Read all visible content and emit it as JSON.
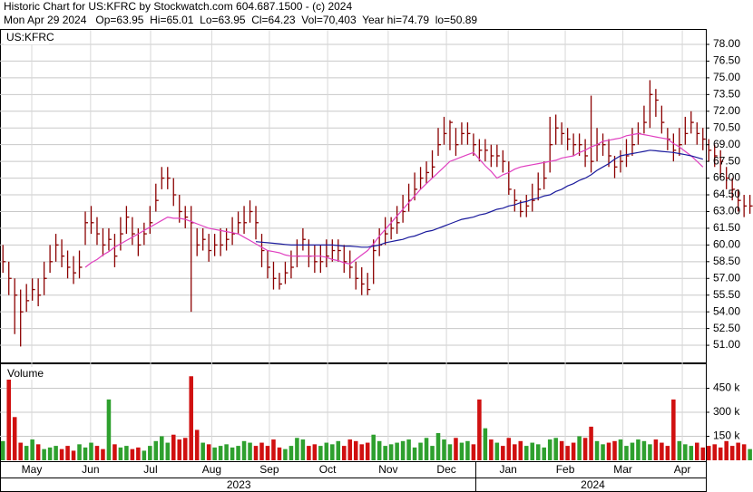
{
  "header": {
    "line1": "Historic Chart for US:KFRC by Stockwatch.com 604.687.1500 - (c) 2024",
    "line2": "Mon Apr 29 2024   Op=63.95  Hi=65.01  Lo=63.95  Cl=64.23  Vol=70,403  Year hi=74.79  lo=50.89"
  },
  "chart_data": [
    {
      "type": "ohlc",
      "title": "US:KFRC",
      "color": "#8b0000",
      "xlim": [
        0,
        120
      ],
      "ylim": [
        49.46,
        79.3
      ],
      "grid": true,
      "yticks": [
        {
          "value": 51,
          "label": "51.00"
        },
        {
          "value": 52.5,
          "label": "52.50"
        },
        {
          "value": 54,
          "label": "54.00"
        },
        {
          "value": 55.5,
          "label": "55.50"
        },
        {
          "value": 57,
          "label": "57.00"
        },
        {
          "value": 58.5,
          "label": "58.50"
        },
        {
          "value": 60,
          "label": "60.00"
        },
        {
          "value": 61.5,
          "label": "61.50"
        },
        {
          "value": 63,
          "label": "63.00"
        },
        {
          "value": 64.5,
          "label": "64.50"
        },
        {
          "value": 66,
          "label": "66.00"
        },
        {
          "value": 67.5,
          "label": "67.50"
        },
        {
          "value": 69,
          "label": "69.00"
        },
        {
          "value": 70.5,
          "label": "70.50"
        },
        {
          "value": 72,
          "label": "72.00"
        },
        {
          "value": 73.5,
          "label": "73.50"
        },
        {
          "value": 75,
          "label": "75.00"
        },
        {
          "value": 76.5,
          "label": "76.50"
        },
        {
          "value": 78,
          "label": "78.00"
        }
      ],
      "close": [
        58.5,
        57,
        55.5,
        54,
        55,
        56,
        55.5,
        57,
        58.5,
        60,
        59,
        58,
        57.5,
        58,
        62,
        62,
        61,
        60,
        60.5,
        59,
        61,
        62.5,
        61,
        60,
        61,
        62,
        64,
        66,
        66,
        64.5,
        63,
        62.5,
        62,
        60,
        60.5,
        59.5,
        60,
        60,
        60.5,
        61,
        62,
        62,
        63,
        62,
        59.5,
        58,
        57,
        56.5,
        57.5,
        58,
        59,
        60.5,
        59,
        58.5,
        58.5,
        59,
        59.5,
        59.5,
        58.5,
        58,
        57,
        56.5,
        56,
        59.5,
        60,
        61,
        61.5,
        62,
        63,
        64,
        65,
        66,
        66.5,
        67,
        69,
        70,
        71,
        69,
        70,
        70,
        69,
        68.5,
        68.5,
        68,
        68,
        67.5,
        65,
        64,
        63,
        63.5,
        64,
        65,
        66,
        69,
        70.5,
        70,
        69.5,
        69,
        69,
        68,
        67.5,
        69,
        69,
        68,
        67,
        67.5,
        68,
        69,
        70,
        71,
        73.5,
        73,
        71,
        69.5,
        68.5,
        69,
        70,
        71,
        70,
        69.5,
        68.5,
        68,
        67.5,
        66,
        65,
        64,
        63.5,
        63.5,
        64,
        64.5,
        64.23
      ],
      "high": [
        60,
        58.5,
        57,
        56,
        56.5,
        57,
        57,
        58.5,
        60,
        61,
        60.5,
        59.5,
        59,
        59.5,
        63,
        63.5,
        62.5,
        61.5,
        61.5,
        61,
        62.5,
        63.5,
        62.5,
        61.5,
        62,
        63.5,
        65.5,
        67,
        67,
        66,
        64.5,
        63.5,
        63.5,
        61.5,
        61.5,
        61,
        61,
        61.5,
        61.5,
        62.5,
        63,
        63.5,
        64,
        63.5,
        61,
        59.5,
        58.5,
        57.5,
        58.5,
        59.5,
        60.5,
        61.5,
        60.5,
        60,
        60,
        60.5,
        60.5,
        60.5,
        60,
        59.5,
        58.5,
        58,
        57.5,
        60.5,
        61.5,
        62.5,
        62.5,
        63.5,
        64.5,
        65.5,
        66.5,
        67,
        67.5,
        68.5,
        70.5,
        71.5,
        71.2,
        70.5,
        71,
        71,
        70,
        69.5,
        69.5,
        69,
        69,
        68.5,
        67.5,
        65,
        64,
        64.5,
        65.5,
        66.5,
        67.5,
        71.5,
        71.7,
        71,
        70.5,
        70,
        70,
        69.5,
        73.4,
        70.5,
        70,
        69.5,
        68,
        68.5,
        69.5,
        70.5,
        71,
        72.5,
        74.79,
        74,
        72.5,
        70.5,
        70,
        70.5,
        71.5,
        72,
        71,
        70.5,
        69.5,
        69,
        68.5,
        67,
        66,
        65,
        64.5,
        64.5,
        65,
        65,
        65.01
      ],
      "low": [
        57.5,
        55.5,
        52,
        50.89,
        54,
        55,
        54.5,
        55.5,
        57.5,
        58.5,
        58,
        57,
        56.5,
        57,
        60,
        61,
        60,
        59,
        59.5,
        58,
        59.5,
        61,
        60,
        59,
        60,
        61,
        63,
        65,
        65,
        63.5,
        62,
        61.5,
        54,
        59,
        59.5,
        58.5,
        59,
        59,
        59.5,
        60,
        61,
        61,
        62,
        60.5,
        58,
        57,
        56,
        56,
        56.5,
        57,
        58,
        59.5,
        58,
        57.5,
        57.5,
        58,
        58.5,
        58.5,
        57.5,
        57,
        56,
        55.5,
        55.5,
        56.5,
        59,
        60,
        60.5,
        61,
        62,
        63,
        64,
        65,
        65.5,
        66,
        68,
        69,
        68.5,
        68,
        69,
        69,
        68,
        67.5,
        67.5,
        67,
        67,
        66.5,
        64.5,
        63,
        62.5,
        62.5,
        63,
        64,
        65,
        66.5,
        69,
        69,
        68.5,
        68,
        68,
        67,
        66.5,
        67.5,
        68,
        67,
        66,
        66.5,
        67,
        68,
        69,
        70,
        70.5,
        71.5,
        70,
        68.5,
        67.5,
        68,
        69,
        70,
        69,
        68.5,
        67.5,
        67,
        66,
        65,
        64,
        63,
        62.5,
        62.8,
        63,
        63.95,
        63.95
      ],
      "series": [
        {
          "color": "#e040c0",
          "values": [
            null,
            null,
            null,
            null,
            null,
            null,
            null,
            null,
            null,
            null,
            null,
            null,
            null,
            null,
            58,
            58.4,
            58.7,
            59.1,
            59.4,
            59.8,
            60.1,
            60.4,
            60.7,
            61,
            61.3,
            61.6,
            61.9,
            62.2,
            62.5,
            62.4,
            62.4,
            62.3,
            62.1,
            61.9,
            61.7,
            61.5,
            61.4,
            61.3,
            61.2,
            61.1,
            61,
            60.7,
            60.4,
            60.1,
            59.8,
            59.5,
            59.4,
            59.3,
            59.1,
            59,
            59,
            59,
            59,
            59,
            59,
            58.9,
            58.7,
            58.6,
            58.4,
            58.3,
            58.7,
            59.1,
            59.5,
            60.1,
            60.8,
            61.4,
            62,
            62.6,
            63.2,
            63.8,
            64.4,
            65,
            65.5,
            66,
            66.5,
            67,
            67.5,
            67.7,
            67.9,
            68.1,
            68.3,
            67.7,
            67.1,
            66.6,
            66,
            66.3,
            66.5,
            66.8,
            67,
            67.1,
            67.2,
            67.3,
            67.4,
            67.5,
            67.6,
            67.8,
            67.9,
            68,
            68.3,
            68.5,
            68.8,
            69,
            69.3,
            69.4,
            69.5,
            69.6,
            69.8,
            69.9,
            70,
            69.9,
            69.8,
            69.7,
            69.6,
            69.5,
            69.1,
            68.8,
            68.4,
            68,
            67.5,
            67
          ]
        },
        {
          "color": "#1a1a9c",
          "values": [
            null,
            null,
            null,
            null,
            null,
            null,
            null,
            null,
            null,
            null,
            null,
            null,
            null,
            null,
            null,
            null,
            null,
            null,
            null,
            null,
            null,
            null,
            null,
            null,
            null,
            null,
            null,
            null,
            null,
            null,
            null,
            null,
            null,
            null,
            null,
            null,
            null,
            null,
            null,
            null,
            null,
            null,
            null,
            60.3,
            60.25,
            60.2,
            60.15,
            60.1,
            60.05,
            60,
            60,
            60,
            60,
            60,
            60,
            60,
            60,
            59.95,
            59.9,
            59.9,
            59.85,
            59.8,
            59.8,
            59.9,
            60,
            60.2,
            60.3,
            60.4,
            60.5,
            60.7,
            60.8,
            61,
            61.2,
            61.3,
            61.5,
            61.7,
            61.9,
            62.1,
            62.3,
            62.4,
            62.5,
            62.7,
            62.8,
            63,
            63.2,
            63.3,
            63.5,
            63.6,
            63.8,
            63.9,
            64.1,
            64.2,
            64.4,
            64.5,
            64.8,
            65,
            65.3,
            65.5,
            65.8,
            66,
            66.3,
            66.7,
            67,
            67.3,
            67.7,
            68,
            68.1,
            68.2,
            68.3,
            68.4,
            68.5,
            68.45,
            68.4,
            68.35,
            68.3,
            68.2,
            68.1,
            68,
            67.85,
            67.7
          ]
        }
      ]
    },
    {
      "type": "bar",
      "title": "Volume",
      "up_color": "#2ea02e",
      "down_color": "#d01010",
      "xlim": [
        0,
        120
      ],
      "ylim": [
        0,
        600000
      ],
      "yticks": [
        {
          "value": 150000,
          "label": "150 k"
        },
        {
          "value": 300000,
          "label": "300 k"
        },
        {
          "value": 450000,
          "label": "450 k"
        }
      ],
      "values": [
        120000,
        570000,
        270000,
        110000,
        90000,
        130000,
        100000,
        70000,
        80000,
        90000,
        70000,
        90000,
        60000,
        100000,
        80000,
        110000,
        90000,
        70000,
        380000,
        100000,
        80000,
        90000,
        70000,
        80000,
        60000,
        90000,
        120000,
        150000,
        110000,
        160000,
        130000,
        140000,
        525000,
        190000,
        110000,
        100000,
        80000,
        90000,
        100000,
        80000,
        90000,
        120000,
        110000,
        90000,
        110000,
        90000,
        130000,
        80000,
        70000,
        90000,
        140000,
        130000,
        90000,
        100000,
        90000,
        110000,
        100000,
        120000,
        90000,
        130000,
        120000,
        100000,
        110000,
        160000,
        120000,
        90000,
        100000,
        110000,
        120000,
        130000,
        80000,
        110000,
        140000,
        90000,
        170000,
        130000,
        100000,
        140000,
        110000,
        120000,
        100000,
        380000,
        200000,
        130000,
        110000,
        90000,
        140000,
        100000,
        120000,
        90000,
        110000,
        100000,
        80000,
        130000,
        140000,
        120000,
        90000,
        110000,
        150000,
        140000,
        210000,
        120000,
        100000,
        110000,
        120000,
        130000,
        90000,
        110000,
        130000,
        120000,
        100000,
        130000,
        110000,
        90000,
        380000,
        120000,
        100000,
        90000,
        110000,
        80000,
        90000,
        100000,
        80000,
        120000,
        90000,
        110000,
        100000,
        70000,
        90000,
        80000,
        70403
      ],
      "xticks": [
        {
          "value": 5.4,
          "label": "May"
        },
        {
          "value": 15.4,
          "label": "Jun"
        },
        {
          "value": 25.6,
          "label": "Jul"
        },
        {
          "value": 36,
          "label": "Aug"
        },
        {
          "value": 45.8,
          "label": "Sep"
        },
        {
          "value": 55.7,
          "label": "Oct"
        },
        {
          "value": 66,
          "label": "Nov"
        },
        {
          "value": 75.9,
          "label": "Dec"
        },
        {
          "value": 86.4,
          "label": "Jan"
        },
        {
          "value": 96.1,
          "label": "Feb"
        },
        {
          "value": 105.9,
          "label": "Mar"
        },
        {
          "value": 116,
          "label": "Apr"
        }
      ],
      "year_ticks": [
        {
          "value": 40.6,
          "label": "2023"
        },
        {
          "value": 100.8,
          "label": "2024"
        }
      ]
    }
  ]
}
